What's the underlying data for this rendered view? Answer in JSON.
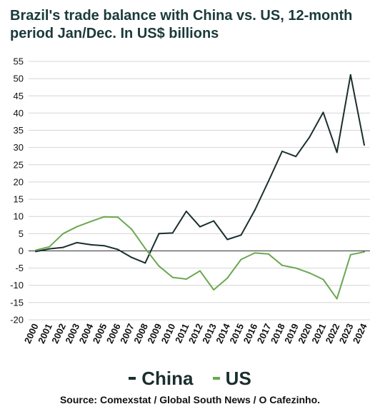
{
  "chart_data": {
    "type": "line",
    "title": "Brazil's trade balance with China vs. US, 12-month period Jan/Dec. In US$ billions",
    "xlabel": "",
    "ylabel": "",
    "x": [
      "2000",
      "2001",
      "2002",
      "2003",
      "2004",
      "2005",
      "2006",
      "2007",
      "2008",
      "2009",
      "2010",
      "2011",
      "2012",
      "2013",
      "2014",
      "2015",
      "2016",
      "2017",
      "2018",
      "2019",
      "2020",
      "2021",
      "2022",
      "2023",
      "2024"
    ],
    "ylim": [
      -20,
      55
    ],
    "yticks": [
      55,
      50,
      45,
      40,
      35,
      30,
      25,
      20,
      15,
      10,
      5,
      0,
      -5,
      -10,
      -15,
      -20
    ],
    "grid": true,
    "legend_position": "bottom",
    "series": [
      {
        "name": "China",
        "color": "#1b2e2e",
        "values": [
          -0.2,
          0.6,
          1.0,
          2.4,
          1.8,
          1.5,
          0.4,
          -1.9,
          -3.5,
          5.0,
          5.2,
          11.5,
          7.0,
          8.7,
          3.3,
          4.6,
          11.8,
          20.2,
          28.9,
          27.4,
          33.0,
          40.2,
          28.6,
          51.1,
          30.7
        ]
      },
      {
        "name": "US",
        "color": "#6aa84f",
        "values": [
          0.2,
          1.2,
          5.0,
          7.0,
          8.5,
          9.9,
          9.8,
          6.3,
          0.7,
          -4.4,
          -7.7,
          -8.2,
          -5.8,
          -11.3,
          -7.9,
          -2.5,
          -0.6,
          -0.9,
          -4.2,
          -5.0,
          -6.4,
          -8.3,
          -13.9,
          -1.1,
          -0.3
        ]
      }
    ]
  },
  "source": "Source: Comexstat / Global South News / O Cafezinho."
}
